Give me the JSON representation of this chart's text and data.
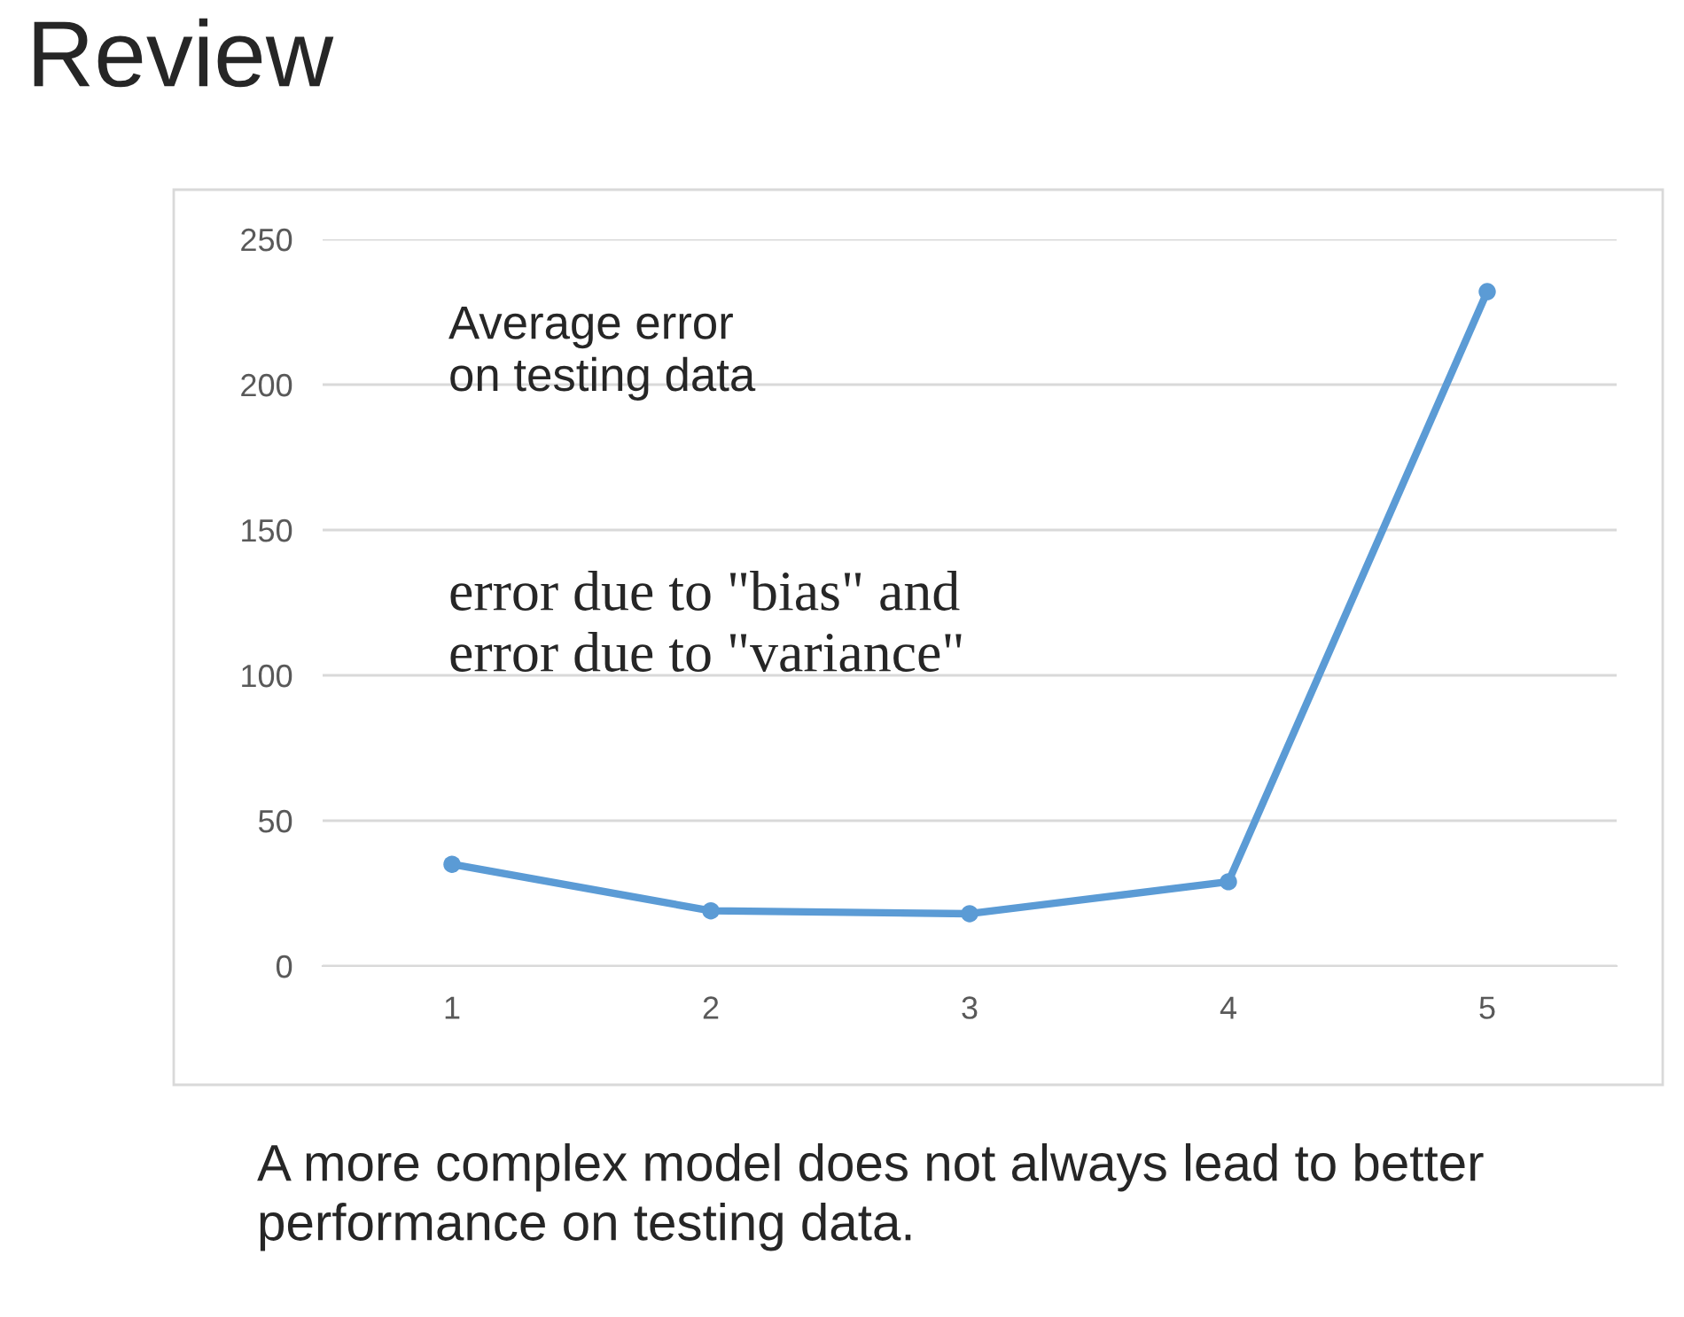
{
  "chart_data": {
    "type": "line",
    "title": "Review",
    "categories": [
      "1",
      "2",
      "3",
      "4",
      "5"
    ],
    "series": [
      {
        "color": "#5b9bd5",
        "values": [
          35,
          19,
          18,
          29,
          232
        ]
      }
    ],
    "ylim": [
      0,
      250
    ],
    "yticks": [
      0,
      50,
      100,
      150,
      200,
      250
    ],
    "grid": "y",
    "marker": "circle",
    "line_style": "solid",
    "annotations": [
      "Average error\non testing data",
      "error due to \"bias\" and\nerror due to \"variance\"",
      "A more complex model does not always lead to better performance on testing data."
    ]
  }
}
